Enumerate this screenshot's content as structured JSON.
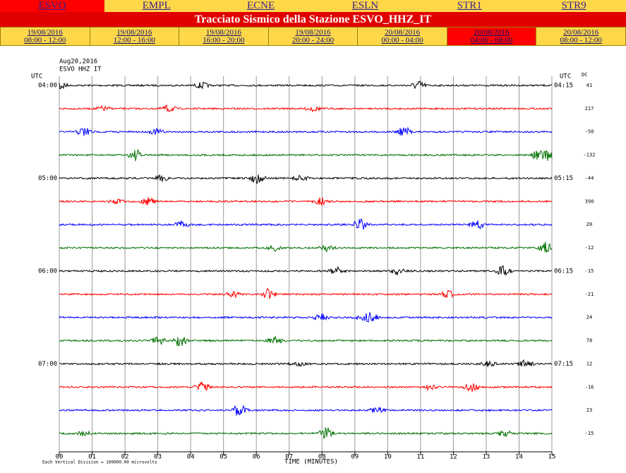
{
  "nav": [
    {
      "label": "ESVO",
      "active": true
    },
    {
      "label": "EMPL",
      "active": false
    },
    {
      "label": "ECNE",
      "active": false
    },
    {
      "label": "ESLN",
      "active": false
    },
    {
      "label": "STR1",
      "active": false
    },
    {
      "label": "STR9",
      "active": false
    }
  ],
  "banner": "Tracciato Sismico della Stazione ESVO_HHZ_IT",
  "periods": [
    {
      "date": "19/08/2016",
      "time": "08:00 - 12:00",
      "active": false
    },
    {
      "date": "19/08/2016",
      "time": "12:00 - 16:00",
      "active": false
    },
    {
      "date": "19/08/2016",
      "time": "16:00 - 20:00",
      "active": false
    },
    {
      "date": "19/08/2016",
      "time": "20:00 - 24:00",
      "active": false
    },
    {
      "date": "20/08/2016",
      "time": "00:00 - 04:00",
      "active": false
    },
    {
      "date": "20/08/2016",
      "time": "04:00 - 08:00",
      "active": true
    },
    {
      "date": "20/08/2016",
      "time": "08:00 - 12:00",
      "active": false
    }
  ],
  "seismogram": {
    "date": "Aug20,2016",
    "station": "ESVO HHZ IT",
    "utc_left": "UTC",
    "utc_right": "UTC",
    "dc_label": "DC",
    "trace_colors": [
      "#000000",
      "#ff0000",
      "#0000ff",
      "#007000"
    ],
    "rows": [
      {
        "left": "04:00",
        "right": "04:15",
        "dc": 41
      },
      {
        "left": null,
        "right": null,
        "dc": 217
      },
      {
        "left": null,
        "right": null,
        "dc": -50
      },
      {
        "left": null,
        "right": null,
        "dc": -132
      },
      {
        "left": "05:00",
        "right": "05:15",
        "dc": -44
      },
      {
        "left": null,
        "right": null,
        "dc": 390
      },
      {
        "left": null,
        "right": null,
        "dc": 20
      },
      {
        "left": null,
        "right": null,
        "dc": -12
      },
      {
        "left": "06:00",
        "right": "06:15",
        "dc": -15
      },
      {
        "left": null,
        "right": null,
        "dc": -21
      },
      {
        "left": null,
        "right": null,
        "dc": 24
      },
      {
        "left": null,
        "right": null,
        "dc": 78
      },
      {
        "left": "07:00",
        "right": "07:15",
        "dc": 12
      },
      {
        "left": null,
        "right": null,
        "dc": -16
      },
      {
        "left": null,
        "right": null,
        "dc": 23
      },
      {
        "left": null,
        "right": null,
        "dc": -15
      }
    ],
    "xticks": [
      "00",
      "01",
      "02",
      "03",
      "04",
      "05",
      "06",
      "07",
      "08",
      "09",
      "10",
      "11",
      "12",
      "13",
      "14",
      "15"
    ],
    "xlabel": "TIME (MINUTES)",
    "note": "Each Vertical Division = 100000.00 microvolts"
  }
}
